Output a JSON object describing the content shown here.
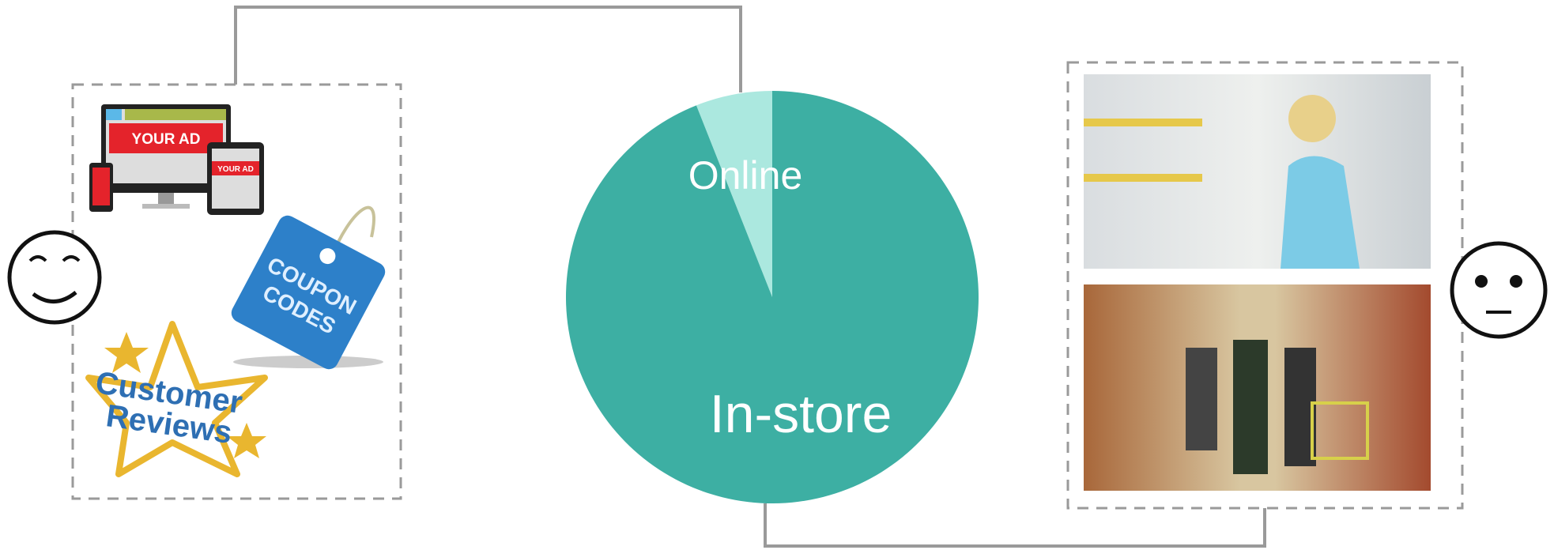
{
  "chart_data": {
    "type": "pie",
    "categories": [
      "Online",
      "In-store"
    ],
    "values": [
      6,
      94
    ],
    "colors": [
      "#abe8df",
      "#3dafa3"
    ]
  },
  "illustrations": {
    "ad_large": "YOUR AD",
    "ad_small": "YOUR AD",
    "coupon": [
      "COUPON",
      "CODES"
    ],
    "reviews": [
      "Customer",
      "Reviews"
    ]
  }
}
